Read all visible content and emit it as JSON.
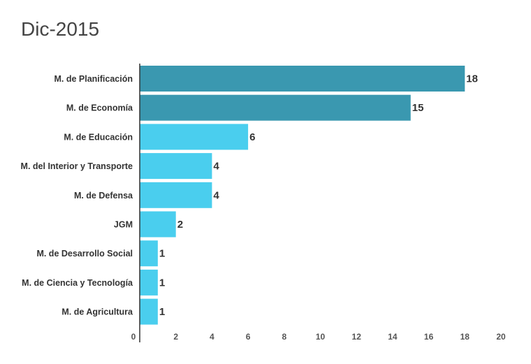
{
  "chart_data": {
    "type": "bar",
    "orientation": "horizontal",
    "title": "Dic-2015",
    "xlabel": "",
    "ylabel": "",
    "xlim": [
      0,
      20
    ],
    "xticks": [
      "0",
      "2",
      "4",
      "6",
      "8",
      "10",
      "12",
      "14",
      "16",
      "18",
      "20"
    ],
    "categories": [
      "M. de Planificación",
      "M. de Economía",
      "M. de Educación",
      "M. del Interior y Transporte",
      "M. de Defensa",
      "JGM",
      "M. de Desarrollo Social",
      "M. de Ciencia y Tecnología",
      "M. de Agricultura"
    ],
    "values": [
      18,
      15,
      6,
      4,
      4,
      2,
      1,
      1,
      1
    ],
    "colors": [
      "#3A98B0",
      "#3A98B0",
      "#4ACEEE",
      "#4ACEEE",
      "#4ACEEE",
      "#4ACEEE",
      "#4ACEEE",
      "#4ACEEE",
      "#4ACEEE"
    ],
    "grid": false,
    "legend": "none"
  }
}
